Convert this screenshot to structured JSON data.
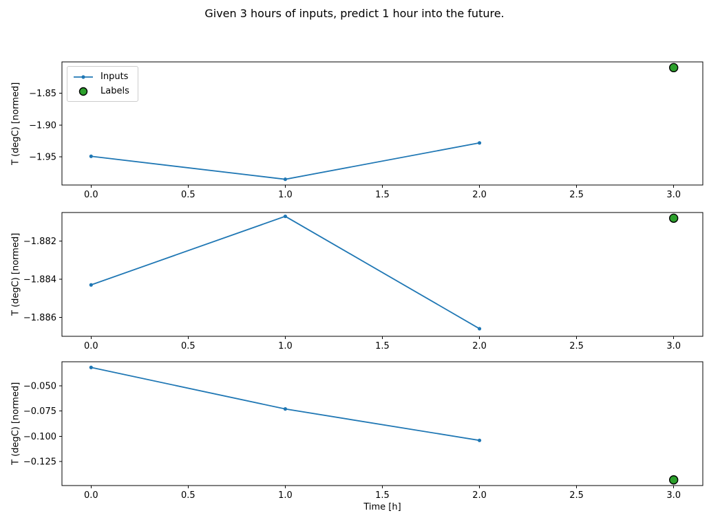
{
  "title": "Given 3 hours of inputs, predict 1 hour into the future.",
  "colors": {
    "inputs": "#1f77b4",
    "labels_fill": "#2ca02c",
    "labels_edge": "#000000",
    "axis": "#000000",
    "background": "#ffffff"
  },
  "legend": {
    "position": "upper-left-subplot-1",
    "items": [
      {
        "label": "Inputs",
        "marker": "line-with-dot"
      },
      {
        "label": "Labels",
        "marker": "filled-circle"
      }
    ]
  },
  "xaxis": {
    "label": "Time [h]",
    "tick_values": [
      0,
      0.5,
      1,
      1.5,
      2,
      2.5,
      3
    ],
    "tick_labels": [
      "0.0",
      "0.5",
      "1.0",
      "1.5",
      "2.0",
      "2.5",
      "3.0"
    ],
    "lim": [
      -0.15,
      3.15
    ]
  },
  "chart_data": [
    {
      "type": "line",
      "ylabel": "T (degC) [normed]",
      "ylim": [
        -1.994,
        -1.801
      ],
      "yticks": {
        "values": [
          -1.85,
          -1.9,
          -1.95
        ],
        "labels": [
          "−1.85",
          "−1.90",
          "−1.95"
        ]
      },
      "grid": false,
      "series": [
        {
          "name": "Inputs",
          "kind": "line",
          "x": [
            0,
            1,
            2
          ],
          "y": [
            -1.949,
            -1.985,
            -1.928
          ]
        },
        {
          "name": "Labels",
          "kind": "scatter",
          "x": [
            3
          ],
          "y": [
            -1.81
          ]
        }
      ]
    },
    {
      "type": "line",
      "ylabel": "T (degC) [normed]",
      "ylim": [
        -1.887,
        -1.8805
      ],
      "yticks": {
        "values": [
          -1.882,
          -1.884,
          -1.886
        ],
        "labels": [
          "−1.882",
          "−1.884",
          "−1.886"
        ]
      },
      "grid": false,
      "series": [
        {
          "name": "Inputs",
          "kind": "line",
          "x": [
            0,
            1,
            2
          ],
          "y": [
            -1.8843,
            -1.8807,
            -1.8866
          ]
        },
        {
          "name": "Labels",
          "kind": "scatter",
          "x": [
            3
          ],
          "y": [
            -1.8808
          ]
        }
      ]
    },
    {
      "type": "line",
      "ylabel": "T (degC) [normed]",
      "ylim": [
        -0.1486,
        -0.0264
      ],
      "yticks": {
        "values": [
          -0.05,
          -0.075,
          -0.1,
          -0.125
        ],
        "labels": [
          "−0.050",
          "−0.075",
          "−0.100",
          "−0.125"
        ]
      },
      "grid": false,
      "series": [
        {
          "name": "Inputs",
          "kind": "line",
          "x": [
            0,
            1,
            2
          ],
          "y": [
            -0.032,
            -0.073,
            -0.104
          ]
        },
        {
          "name": "Labels",
          "kind": "scatter",
          "x": [
            3
          ],
          "y": [
            -0.143
          ]
        }
      ]
    }
  ]
}
